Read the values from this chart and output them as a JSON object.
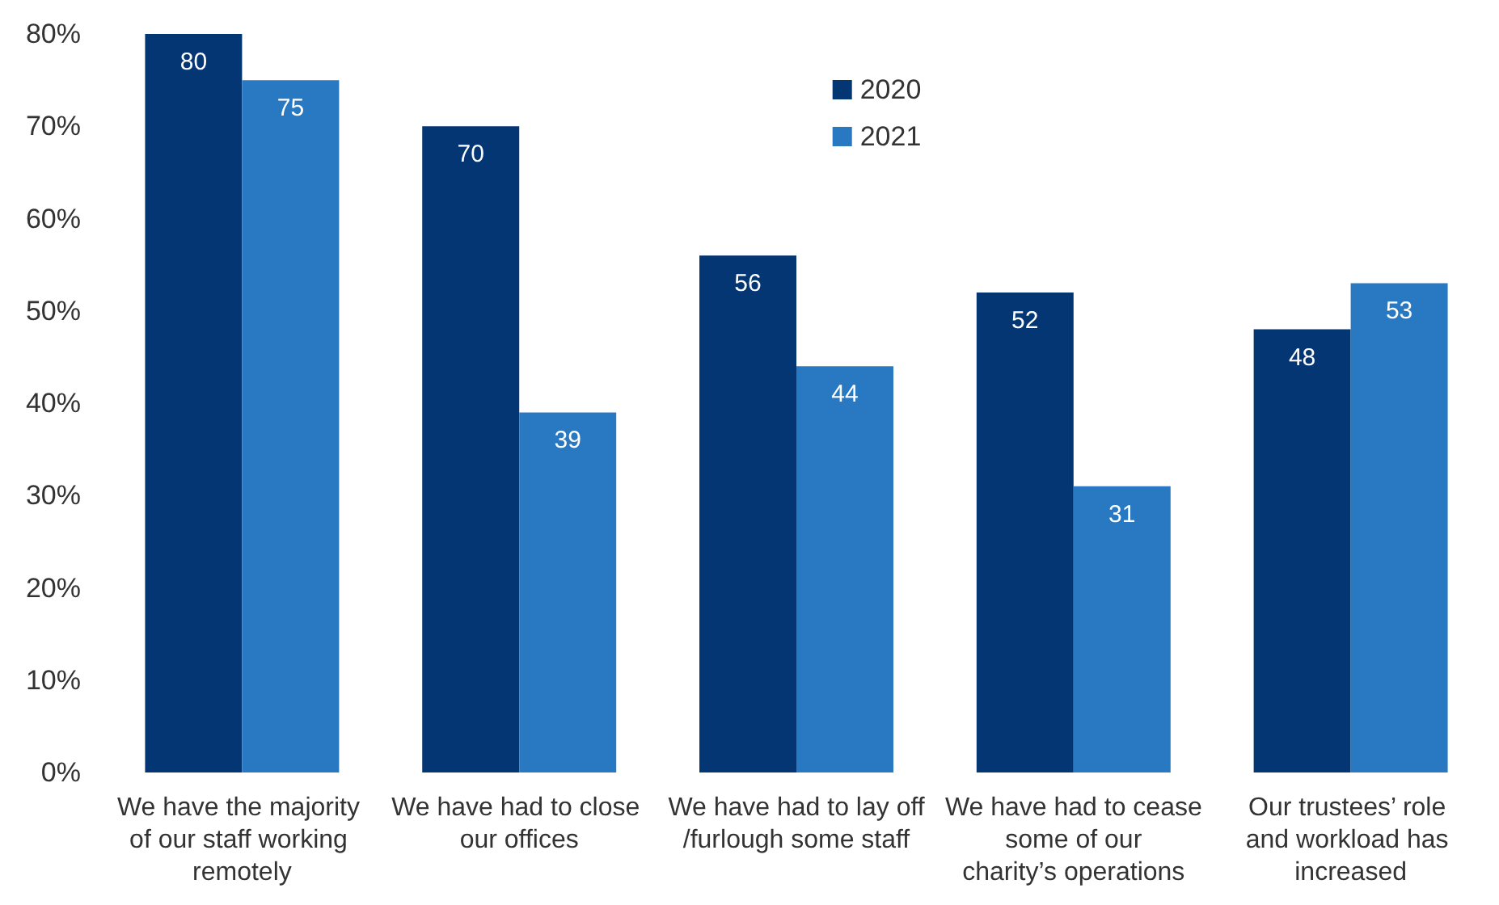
{
  "chart_data": {
    "type": "bar",
    "categories": [
      "We have the majority of our staff working remotely",
      "We have had to close our offices",
      "We have had to lay off/furlough some staff",
      "We have had to cease some of our charity’s operations",
      "Our trustees’ role and workload has increased"
    ],
    "series": [
      {
        "name": "2020",
        "color": "#043673",
        "values": [
          80,
          70,
          56,
          52,
          48
        ]
      },
      {
        "name": "2021",
        "color": "#2878c2",
        "values": [
          75,
          39,
          44,
          31,
          53
        ]
      }
    ],
    "ylim": [
      0,
      80
    ],
    "yticks": [
      {
        "value": 0,
        "label": "0%"
      },
      {
        "value": 10,
        "label": "10%"
      },
      {
        "value": 20,
        "label": "20%"
      },
      {
        "value": 30,
        "label": "30%"
      },
      {
        "value": 40,
        "label": "40%"
      },
      {
        "value": 50,
        "label": "50%"
      },
      {
        "value": 60,
        "label": "60%"
      },
      {
        "value": 70,
        "label": "70%"
      },
      {
        "value": 80,
        "label": "80%"
      }
    ],
    "data_labels": true,
    "grid": false,
    "legend": "top"
  }
}
